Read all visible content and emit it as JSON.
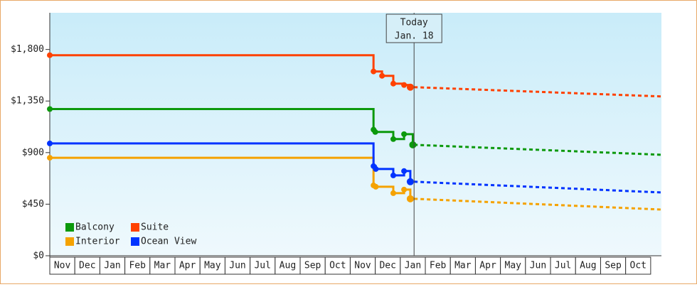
{
  "chart_data": {
    "type": "step-line",
    "xlim": [
      0,
      24.43
    ],
    "xticks": [
      {
        "value": 0.5,
        "label": "Nov"
      },
      {
        "value": 1.5,
        "label": "Dec"
      },
      {
        "value": 2.5,
        "label": "Jan"
      },
      {
        "value": 3.5,
        "label": "Feb"
      },
      {
        "value": 4.5,
        "label": "Mar"
      },
      {
        "value": 5.5,
        "label": "Apr"
      },
      {
        "value": 6.5,
        "label": "May"
      },
      {
        "value": 7.5,
        "label": "Jun"
      },
      {
        "value": 8.5,
        "label": "Jul"
      },
      {
        "value": 9.5,
        "label": "Aug"
      },
      {
        "value": 10.5,
        "label": "Sep"
      },
      {
        "value": 11.5,
        "label": "Oct"
      },
      {
        "value": 12.5,
        "label": "Nov"
      },
      {
        "value": 13.5,
        "label": "Dec"
      },
      {
        "value": 14.5,
        "label": "Jan"
      },
      {
        "value": 15.5,
        "label": "Feb"
      },
      {
        "value": 16.5,
        "label": "Mar"
      },
      {
        "value": 17.5,
        "label": "Apr"
      },
      {
        "value": 18.5,
        "label": "May"
      },
      {
        "value": 19.5,
        "label": "Jun"
      },
      {
        "value": 20.5,
        "label": "Jul"
      },
      {
        "value": 21.5,
        "label": "Aug"
      },
      {
        "value": 22.5,
        "label": "Sep"
      },
      {
        "value": 23.5,
        "label": "Oct"
      }
    ],
    "ylim": [
      0,
      2120
    ],
    "yticks": [
      {
        "value": 0,
        "label": "$0"
      },
      {
        "value": 450,
        "label": "$450"
      },
      {
        "value": 900,
        "label": "$900"
      },
      {
        "value": 1350,
        "label": "$1,350"
      },
      {
        "value": 1800,
        "label": "$1,800"
      }
    ],
    "today": {
      "x": 14.55,
      "label": [
        "Today",
        "Jan. 18"
      ]
    },
    "legend": "bottom-left",
    "series": [
      {
        "name": "Balcony",
        "color": "#0c990c",
        "x": [
          0,
          12.93,
          13.0,
          13.72,
          14.15,
          14.5
        ],
        "values": [
          1280,
          1100,
          1080,
          1018,
          1061,
          968
        ],
        "forecast": {
          "x": [
            14.55,
            24.43
          ],
          "values": [
            968,
            881
          ]
        }
      },
      {
        "name": "Suite",
        "color": "#ff4100",
        "x": [
          0,
          12.93,
          13.27,
          13.72,
          14.15,
          14.4
        ],
        "values": [
          1750,
          1608,
          1570,
          1502,
          1490,
          1471
        ],
        "forecast": {
          "x": [
            14.55,
            24.43
          ],
          "values": [
            1471,
            1390
          ]
        }
      },
      {
        "name": "Interior",
        "color": "#f5a200",
        "x": [
          0,
          12.93,
          13.02,
          13.72,
          14.15,
          14.4
        ],
        "values": [
          855,
          614,
          602,
          546,
          577,
          497
        ],
        "forecast": {
          "x": [
            14.55,
            24.43
          ],
          "values": [
            497,
            403
          ]
        }
      },
      {
        "name": "Ocean View",
        "color": "#0033ff",
        "x": [
          0,
          12.93,
          13.02,
          13.72,
          14.15,
          14.4
        ],
        "values": [
          980,
          782,
          757,
          701,
          739,
          646
        ],
        "forecast": {
          "x": [
            14.55,
            24.43
          ],
          "values": [
            646,
            552
          ]
        }
      }
    ]
  }
}
